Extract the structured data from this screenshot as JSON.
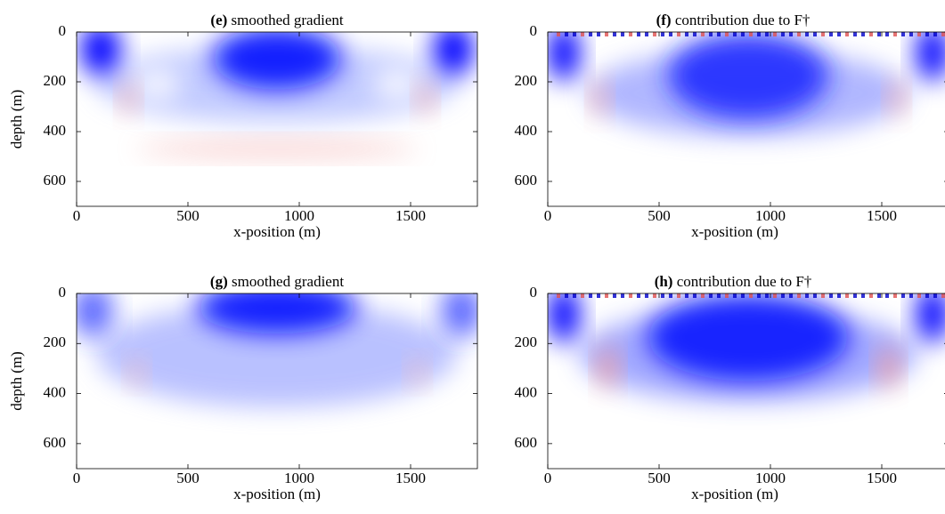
{
  "chart_data": [
    {
      "type": "heatmap",
      "panel_label": "(e)",
      "title": "smoothed gradient",
      "xlabel": "x-position (m)",
      "ylabel": "depth (m)",
      "xlim": [
        0,
        1800
      ],
      "ylim": [
        0,
        700
      ],
      "xticks": [
        0,
        500,
        1000,
        1500
      ],
      "yticks": [
        0,
        200,
        400,
        600
      ]
    },
    {
      "type": "heatmap",
      "panel_label": "(f)",
      "title": "contribution due to F†",
      "xlabel": "x-position (m)",
      "xlim": [
        0,
        1800
      ],
      "ylim": [
        0,
        700
      ],
      "xticks": [
        0,
        500,
        1000,
        1500
      ],
      "yticks": [
        0,
        200,
        400,
        600
      ]
    },
    {
      "type": "heatmap",
      "panel_label": "(g)",
      "title": "smoothed gradient",
      "xlabel": "x-position (m)",
      "ylabel": "depth (m)",
      "xlim": [
        0,
        1800
      ],
      "ylim": [
        0,
        700
      ],
      "xticks": [
        0,
        500,
        1000,
        1500
      ],
      "yticks": [
        0,
        200,
        400,
        600
      ]
    },
    {
      "type": "heatmap",
      "panel_label": "(h)",
      "title": "contribution due to F†",
      "xlabel": "x-position (m)",
      "xlim": [
        0,
        1800
      ],
      "ylim": [
        0,
        700
      ],
      "xticks": [
        0,
        500,
        1000,
        1500
      ],
      "yticks": [
        0,
        200,
        400,
        600
      ]
    }
  ]
}
